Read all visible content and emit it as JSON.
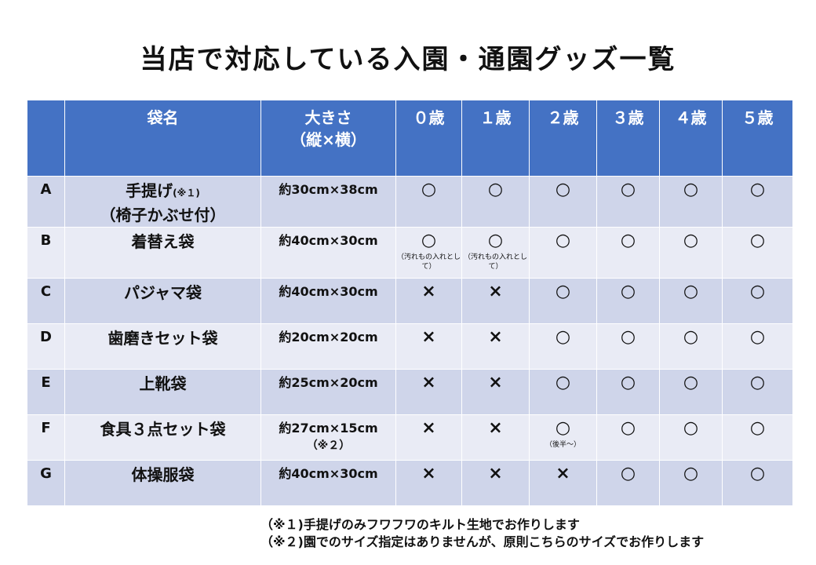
{
  "title": "当店で対応している入園・通園グッズ一覧",
  "headers": {
    "blank": "",
    "name": "袋名",
    "size_line1": "大きさ",
    "size_line2": "（縦×横）",
    "age0": "０歳",
    "age1": "１歳",
    "age2": "２歳",
    "age3": "３歳",
    "age4": "４歳",
    "age5": "５歳"
  },
  "rows": [
    {
      "letter": "A",
      "name": "手提げ",
      "name_note": "(※１)",
      "name_line2": "（椅子かぶせ付）",
      "size": "約30cm×38cm",
      "size_note": "",
      "marks": [
        "○",
        "○",
        "○",
        "○",
        "○",
        "○"
      ],
      "captions": [
        "",
        "",
        "",
        "",
        "",
        ""
      ]
    },
    {
      "letter": "B",
      "name": "着替え袋",
      "name_note": "",
      "name_line2": "",
      "size": "約40cm×30cm",
      "size_note": "",
      "marks": [
        "○",
        "○",
        "○",
        "○",
        "○",
        "○"
      ],
      "captions": [
        "（汚れもの入れとして）",
        "（汚れもの入れとして）",
        "",
        "",
        "",
        ""
      ]
    },
    {
      "letter": "C",
      "name": "パジャマ袋",
      "name_note": "",
      "name_line2": "",
      "size": "約40cm×30cm",
      "size_note": "",
      "marks": [
        "×",
        "×",
        "○",
        "○",
        "○",
        "○"
      ],
      "captions": [
        "",
        "",
        "",
        "",
        "",
        ""
      ]
    },
    {
      "letter": "D",
      "name": "歯磨きセット袋",
      "name_note": "",
      "name_line2": "",
      "size": "約20cm×20cm",
      "size_note": "",
      "marks": [
        "×",
        "×",
        "○",
        "○",
        "○",
        "○"
      ],
      "captions": [
        "",
        "",
        "",
        "",
        "",
        ""
      ]
    },
    {
      "letter": "E",
      "name": "上靴袋",
      "name_note": "",
      "name_line2": "",
      "size": "約25cm×20cm",
      "size_note": "",
      "marks": [
        "×",
        "×",
        "○",
        "○",
        "○",
        "○"
      ],
      "captions": [
        "",
        "",
        "",
        "",
        "",
        ""
      ]
    },
    {
      "letter": "F",
      "name": "食具３点セット袋",
      "name_note": "",
      "name_line2": "",
      "size": "約27cm×15cm",
      "size_note": "（※２）",
      "marks": [
        "×",
        "×",
        "○",
        "○",
        "○",
        "○"
      ],
      "captions": [
        "",
        "",
        "（後半～）",
        "",
        "",
        ""
      ]
    },
    {
      "letter": "G",
      "name": "体操服袋",
      "name_note": "",
      "name_line2": "",
      "size": "約40cm×30cm",
      "size_note": "",
      "marks": [
        "×",
        "×",
        "×",
        "○",
        "○",
        "○"
      ],
      "captions": [
        "",
        "",
        "",
        "",
        "",
        ""
      ]
    }
  ],
  "footnotes": [
    "（※１)手提げのみフワフワのキルト生地でお作りします",
    "（※２)園でのサイズ指定はありませんが、原則こちらのサイズでお作りします"
  ]
}
